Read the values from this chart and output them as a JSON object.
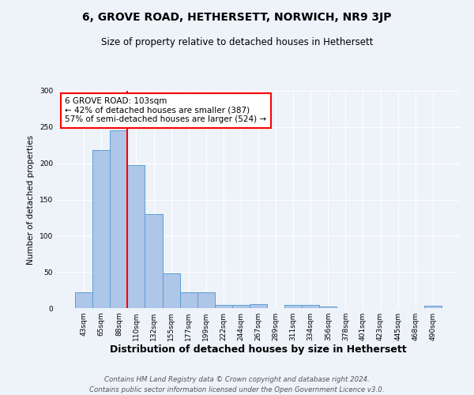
{
  "title": "6, GROVE ROAD, HETHERSETT, NORWICH, NR9 3JP",
  "subtitle": "Size of property relative to detached houses in Hethersett",
  "xlabel": "Distribution of detached houses by size in Hethersett",
  "ylabel": "Number of detached properties",
  "bar_labels": [
    "43sqm",
    "65sqm",
    "88sqm",
    "110sqm",
    "132sqm",
    "155sqm",
    "177sqm",
    "199sqm",
    "222sqm",
    "244sqm",
    "267sqm",
    "289sqm",
    "311sqm",
    "334sqm",
    "356sqm",
    "378sqm",
    "401sqm",
    "423sqm",
    "445sqm",
    "468sqm",
    "490sqm"
  ],
  "bar_values": [
    22,
    218,
    245,
    197,
    130,
    48,
    22,
    22,
    4,
    4,
    6,
    0,
    4,
    4,
    2,
    0,
    0,
    0,
    0,
    0,
    3
  ],
  "bar_color": "#aec6e8",
  "bar_edge_color": "#5a9fd4",
  "vline_x_index": 2.5,
  "vline_color": "red",
  "annotation_line1": "6 GROVE ROAD: 103sqm",
  "annotation_line2": "← 42% of detached houses are smaller (387)",
  "annotation_line3": "57% of semi-detached houses are larger (524) →",
  "annotation_box_color": "white",
  "annotation_box_edge": "red",
  "ylim": [
    0,
    300
  ],
  "yticks": [
    0,
    50,
    100,
    150,
    200,
    250,
    300
  ],
  "background_color": "#eef2f9",
  "footer_line1": "Contains HM Land Registry data © Crown copyright and database right 2024.",
  "footer_line2": "Contains public sector information licensed under the Open Government Licence v3.0."
}
